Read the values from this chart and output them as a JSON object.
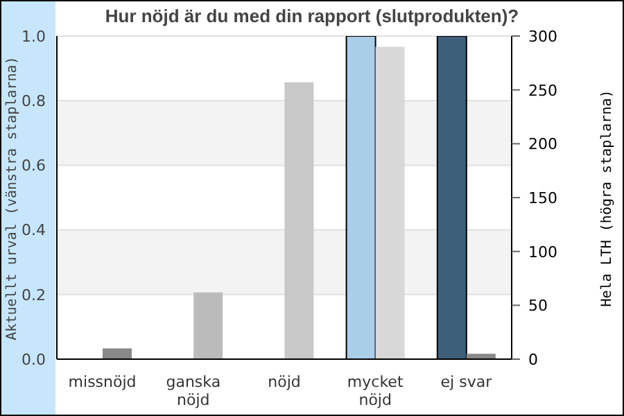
{
  "chart_data": {
    "type": "bar",
    "title": "Hur nöjd är du med din rapport (slutprodukten)?",
    "ylabel": "Aktuellt urval (vänstra staplarna)",
    "y2label": "Hela LTH (högra staplarna)",
    "categories": [
      "missnöjd",
      "ganska nöjd",
      "nöjd",
      "mycket nöjd",
      "ej svar"
    ],
    "series": [
      {
        "colors": [
          "#aacde8",
          "#aacde8",
          "#aacde8",
          "#aacde8",
          "#3e5f7a"
        ],
        "values": [
          0,
          0,
          0,
          1.0,
          1.0
        ]
      },
      {
        "axis": "y2",
        "colors": [
          "#888888",
          "#bbbbbb",
          "#c8c8c8",
          "#d8d8d8",
          "#888888"
        ],
        "values": [
          10,
          62,
          257,
          290,
          5
        ]
      }
    ],
    "ylim": [
      0,
      1
    ],
    "yticks": [
      {
        "value": 0,
        "label": "0.0"
      },
      {
        "value": 0.2,
        "label": "0.2"
      },
      {
        "value": 0.4,
        "label": "0.4"
      },
      {
        "value": 0.6,
        "label": "0.6"
      },
      {
        "value": 0.8,
        "label": "0.8"
      },
      {
        "value": 1,
        "label": "1.0"
      }
    ],
    "y2lim": [
      0,
      300
    ],
    "y2ticks": [
      0,
      50,
      100,
      150,
      200,
      250,
      300
    ],
    "grid": "y"
  }
}
